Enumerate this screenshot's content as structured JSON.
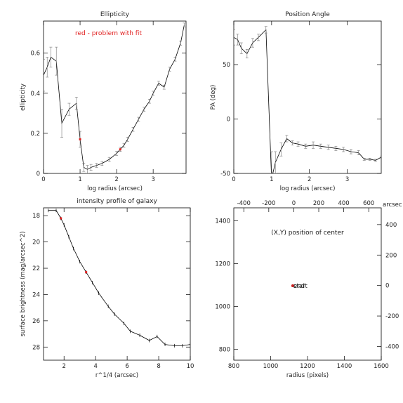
{
  "chart_data": [
    {
      "type": "line",
      "title": "Ellipticity",
      "xlabel": "log radius (arcsec)",
      "ylabel": "ellipticity",
      "annotation": "red - problem with fit",
      "colors": {
        "annotation": "#e02020",
        "line": "#000000",
        "error_bar": "#777777"
      },
      "xlim": [
        0,
        3.9
      ],
      "ylim": [
        0,
        0.76
      ],
      "xticks": [
        0,
        1,
        2,
        3
      ],
      "yticks": [
        0,
        0.2,
        0.4,
        0.6
      ],
      "x": [
        0.0,
        0.1,
        0.2,
        0.35,
        0.5,
        0.7,
        0.9,
        1.0,
        1.1,
        1.2,
        1.3,
        1.45,
        1.6,
        1.8,
        2.0,
        2.1,
        2.2,
        2.3,
        2.45,
        2.6,
        2.75,
        2.9,
        3.0,
        3.15,
        3.3,
        3.45,
        3.6,
        3.75,
        3.85
      ],
      "y": [
        0.49,
        0.53,
        0.58,
        0.56,
        0.25,
        0.32,
        0.35,
        0.17,
        0.03,
        0.02,
        0.03,
        0.04,
        0.05,
        0.07,
        0.1,
        0.12,
        0.14,
        0.17,
        0.22,
        0.27,
        0.32,
        0.36,
        0.4,
        0.45,
        0.43,
        0.52,
        0.57,
        0.65,
        0.74
      ],
      "errors": [
        0.08,
        0.05,
        0.05,
        0.07,
        0.07,
        0.03,
        0.03,
        0.04,
        0.02,
        0.02,
        0.015,
        0.01,
        0.01,
        0.01,
        0.01,
        0.01,
        0.01,
        0.01,
        0.01,
        0.01,
        0.01,
        0.01,
        0.01,
        0.01,
        0.01,
        0.01,
        0.01,
        0.01,
        0.01
      ],
      "flagged_x": [
        1.0,
        2.1
      ]
    },
    {
      "type": "line",
      "title": "Position Angle",
      "xlabel": "log radius (arcsec)",
      "ylabel": "PA (deg)",
      "xlim": [
        0,
        3.9
      ],
      "ylim": [
        -50,
        90
      ],
      "xticks": [
        0,
        1,
        2,
        3
      ],
      "yticks": [
        -50,
        0,
        50
      ],
      "x": [
        0.0,
        0.1,
        0.2,
        0.35,
        0.5,
        0.65,
        0.85,
        1.0,
        1.1,
        1.25,
        1.4,
        1.55,
        1.7,
        1.9,
        2.1,
        2.3,
        2.5,
        2.7,
        2.9,
        3.1,
        3.3,
        3.45,
        3.6,
        3.75,
        3.9
      ],
      "y": [
        75,
        73,
        65,
        60,
        70,
        75,
        82,
        -55,
        -40,
        -28,
        -18,
        -22,
        -23,
        -25,
        -24,
        -25,
        -26,
        -27,
        -28,
        -30,
        -31,
        -37,
        -37,
        -38,
        -35
      ],
      "errors": [
        7,
        5,
        5,
        4,
        4,
        3,
        3,
        25,
        10,
        6,
        3,
        2,
        2,
        2,
        3,
        2,
        2,
        2,
        2,
        2,
        2,
        1,
        1,
        1,
        1
      ]
    },
    {
      "type": "line",
      "title": "intensity profile of galaxy",
      "xlabel": "r^1/4 (arcsec)",
      "ylabel": "surface brightness (mag/arcsec^2)",
      "xlim": [
        0.7,
        10
      ],
      "ylim": [
        29,
        17.4
      ],
      "xticks": [
        2,
        4,
        6,
        8,
        10
      ],
      "yticks": [
        18,
        20,
        22,
        24,
        26,
        28
      ],
      "x": [
        1.0,
        1.5,
        1.8,
        2.0,
        2.3,
        2.6,
        3.0,
        3.4,
        3.8,
        4.2,
        4.8,
        5.2,
        5.8,
        6.2,
        6.8,
        7.4,
        7.9,
        8.4,
        9.0,
        9.5,
        10.0
      ],
      "y": [
        17.6,
        17.6,
        18.2,
        18.7,
        19.6,
        20.5,
        21.5,
        22.3,
        23.1,
        23.9,
        24.9,
        25.5,
        26.2,
        26.8,
        27.1,
        27.5,
        27.2,
        27.8,
        27.9,
        27.9,
        27.8
      ],
      "flagged_x": [
        1.8,
        3.4
      ]
    },
    {
      "type": "scatter",
      "title": "(X,Y) position of center",
      "xlabel": "radius (pixels)",
      "ylabel": "",
      "xlim": [
        800,
        1600
      ],
      "ylim": [
        750,
        1460
      ],
      "xticks": [
        800,
        1000,
        1200,
        1400,
        1600
      ],
      "yticks": [
        800,
        1000,
        1200,
        1400
      ],
      "top_xlim": [
        -480,
        700
      ],
      "top_xticks": [
        -400,
        -200,
        0,
        200,
        400,
        600
      ],
      "top_label": "arcsec",
      "right_ylim": [
        -490,
        510
      ],
      "right_yticks": [
        -400,
        -200,
        0,
        200,
        400
      ],
      "points": [
        {
          "x": 1120,
          "y": 1097,
          "label": "start"
        },
        {
          "x": 1120,
          "y": 1097,
          "label": "end"
        }
      ],
      "colors": {
        "marker": "#cc2020"
      }
    }
  ]
}
